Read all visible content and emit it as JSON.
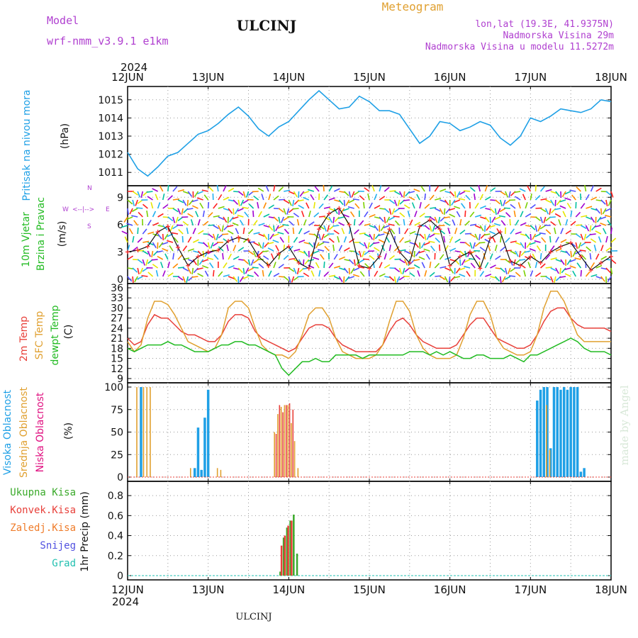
{
  "header": {
    "model_label": "Model",
    "model_name": "wrf-nmm_v3.9.1  e1km",
    "station": "ULCINJ",
    "meteogram": "Meteogram",
    "coords": "lon,lat (19.3E, 41.9375N)",
    "elevation": "Nadmorska Visina 29m",
    "model_elevation": "Nadmorska Visina u modelu 11.5272m",
    "year_top": "2024",
    "year_bottom": "2024",
    "footer_station": "ULCINJ",
    "watermark": "made by Angel"
  },
  "colors": {
    "pressure": "#1fa0e6",
    "t2m": "#e8403a",
    "sfc": "#e0a030",
    "dewpt": "#22bb22",
    "high": "#1fa0e6",
    "mid": "#e0a030",
    "low": "#e8403a",
    "total": "#3aaa2a",
    "conv": "#e8403a",
    "frz": "#ef7c2a",
    "snow": "#5050e0",
    "grad": "#22c0b0",
    "purple": "#b040d0"
  },
  "panel_labels": {
    "pressure": [
      "Pritisak na nivou mora"
    ],
    "pressure_unit": "(hPa)",
    "wind": [
      "10m Vjetar",
      "Brzina i Pravac"
    ],
    "wind_unit": "(m/s)",
    "compass_w": "W",
    "compass_e": "E",
    "compass_n": "N",
    "compass_s": "S",
    "temp": [
      "2m Temp",
      "SFC Temp",
      "dewpt Temp"
    ],
    "temp_unit": "(C)",
    "cloud": [
      "Visoka Oblacnost",
      "Srednja Oblacnost",
      "Niska Oblacnost"
    ],
    "cloud_unit": "(%)",
    "precip_unit": "1hr Precip (mm)",
    "precip_legend": [
      "Ukupna Kisa",
      "Konvek.Kisa",
      "Zaledj.Kisa",
      "Snijeg",
      "Grad"
    ]
  },
  "chart_data": [
    {
      "type": "line",
      "name": "pressure",
      "x_labels": [
        "12JUN",
        "13JUN",
        "14JUN",
        "15JUN",
        "16JUN",
        "17JUN",
        "18JUN"
      ],
      "xlim": [
        0,
        144
      ],
      "ylim": [
        1010.5,
        1015.5
      ],
      "yticks": [
        1011,
        1012,
        1013,
        1014,
        1015
      ],
      "grid": true,
      "x": [
        0,
        3,
        6,
        9,
        12,
        15,
        18,
        21,
        24,
        27,
        30,
        33,
        36,
        39,
        42,
        45,
        48,
        51,
        54,
        57,
        60,
        63,
        66,
        69,
        72,
        75,
        78,
        81,
        84,
        87,
        90,
        93,
        96,
        99,
        102,
        105,
        108,
        111,
        114,
        117,
        120,
        123,
        126,
        129,
        132,
        135,
        138,
        141,
        144
      ],
      "values": [
        1012.1,
        1011.2,
        1010.8,
        1011.3,
        1011.9,
        1012.1,
        1012.6,
        1013.1,
        1013.3,
        1013.7,
        1014.2,
        1014.6,
        1014.1,
        1013.4,
        1013.0,
        1013.5,
        1013.8,
        1014.4,
        1015.0,
        1015.5,
        1015.0,
        1014.5,
        1014.6,
        1015.2,
        1014.9,
        1014.4,
        1014.4,
        1014.2,
        1013.4,
        1012.6,
        1013.0,
        1013.8,
        1013.7,
        1013.3,
        1013.5,
        1013.8,
        1013.6,
        1012.9,
        1012.5,
        1013.0,
        1014.0,
        1013.8,
        1014.1,
        1014.5,
        1014.4,
        1014.3,
        1014.5,
        1015.0,
        1014.9
      ]
    },
    {
      "type": "line",
      "name": "wind",
      "xlim": [
        0,
        144
      ],
      "ylim": [
        0,
        9.8
      ],
      "yticks": [
        0,
        3,
        6,
        9
      ],
      "grid": true,
      "x": [
        0,
        3,
        6,
        9,
        12,
        15,
        18,
        21,
        24,
        27,
        30,
        33,
        36,
        39,
        42,
        45,
        48,
        51,
        54,
        57,
        60,
        63,
        66,
        69,
        72,
        75,
        78,
        81,
        84,
        87,
        90,
        93,
        96,
        99,
        102,
        105,
        108,
        111,
        114,
        117,
        120,
        123,
        126,
        129,
        132,
        135,
        138,
        141,
        144
      ],
      "values": [
        3.0,
        3.2,
        3.6,
        5.2,
        5.8,
        3.5,
        1.5,
        2.5,
        3.0,
        3.2,
        4.2,
        4.6,
        4.3,
        2.5,
        1.5,
        2.8,
        3.6,
        1.8,
        1.2,
        5.5,
        7.2,
        7.8,
        6.0,
        1.5,
        1.2,
        2.5,
        5.5,
        3.0,
        1.8,
        5.8,
        6.5,
        5.5,
        1.5,
        2.5,
        3.0,
        1.2,
        4.5,
        5.2,
        2.0,
        1.5,
        2.5,
        1.8,
        3.0,
        3.6,
        4.0,
        2.5,
        1.0,
        1.8,
        2.5
      ],
      "series_colors": [
        "#ff2020",
        "#ff8c00",
        "#e6e600",
        "#7cd000",
        "#00c0a0",
        "#20b0f0",
        "#5050ff",
        "#a000d0"
      ]
    },
    {
      "type": "line",
      "name": "temperature",
      "xlim": [
        0,
        144
      ],
      "ylim": [
        9,
        36
      ],
      "yticks": [
        9,
        12,
        15,
        18,
        21,
        24,
        27,
        30,
        33,
        36
      ],
      "grid": true,
      "x": [
        0,
        2,
        4,
        6,
        8,
        10,
        12,
        14,
        16,
        18,
        20,
        22,
        24,
        26,
        28,
        30,
        32,
        34,
        36,
        38,
        40,
        42,
        44,
        46,
        48,
        50,
        52,
        54,
        56,
        58,
        60,
        62,
        64,
        66,
        68,
        70,
        72,
        74,
        76,
        78,
        80,
        82,
        84,
        86,
        88,
        90,
        92,
        94,
        96,
        98,
        100,
        102,
        104,
        106,
        108,
        110,
        112,
        114,
        116,
        118,
        120,
        122,
        124,
        126,
        128,
        130,
        132,
        134,
        136,
        138,
        140,
        142,
        144
      ],
      "series": [
        {
          "name": "2m Temp",
          "values": [
            21,
            19,
            20,
            25,
            28,
            27,
            27,
            25,
            23,
            22,
            22,
            21,
            20,
            20,
            22,
            26,
            28,
            28,
            27,
            23,
            21,
            20,
            19,
            18,
            17,
            18,
            21,
            24,
            25,
            25,
            24,
            21,
            19,
            18,
            17,
            17,
            17,
            17,
            19,
            23,
            26,
            27,
            25,
            22,
            20,
            19,
            18,
            18,
            18,
            19,
            22,
            25,
            27,
            27,
            24,
            21,
            20,
            19,
            18,
            18,
            19,
            22,
            26,
            29,
            30,
            30,
            27,
            25,
            24,
            24,
            24,
            24,
            23
          ]
        },
        {
          "name": "SFC Temp",
          "values": [
            20,
            17,
            19,
            27,
            32,
            32,
            31,
            28,
            24,
            20,
            19,
            18,
            17,
            18,
            22,
            30,
            32,
            32,
            30,
            24,
            19,
            17,
            16,
            16,
            15,
            17,
            22,
            28,
            30,
            30,
            27,
            21,
            17,
            16,
            15,
            15,
            15,
            16,
            19,
            26,
            32,
            32,
            29,
            22,
            18,
            16,
            15,
            15,
            15,
            16,
            21,
            28,
            32,
            32,
            28,
            21,
            18,
            17,
            16,
            16,
            17,
            22,
            30,
            35,
            35,
            32,
            27,
            22,
            20,
            20,
            20,
            20,
            20
          ]
        },
        {
          "name": "dewpt Temp",
          "values": [
            18,
            17,
            18,
            19,
            19,
            19,
            20,
            19,
            19,
            18,
            17,
            17,
            17,
            18,
            19,
            19,
            20,
            20,
            19,
            19,
            18,
            17,
            16,
            12,
            10,
            12,
            14,
            14,
            15,
            14,
            14,
            16,
            16,
            16,
            16,
            15,
            16,
            16,
            16,
            16,
            16,
            16,
            17,
            17,
            17,
            16,
            17,
            16,
            17,
            16,
            15,
            15,
            16,
            16,
            15,
            15,
            15,
            16,
            15,
            14,
            16,
            16,
            17,
            18,
            19,
            20,
            21,
            20,
            18,
            17,
            17,
            17,
            16
          ]
        }
      ]
    },
    {
      "type": "bar",
      "name": "clouds",
      "xlim": [
        0,
        144
      ],
      "ylim": [
        0,
        100
      ],
      "yticks": [
        0,
        25,
        50,
        75,
        100
      ],
      "grid": true,
      "series": [
        {
          "name": "Visoka Oblacnost",
          "points": [
            [
              4,
              100
            ],
            [
              20,
              10
            ],
            [
              21,
              55
            ],
            [
              22,
              8
            ],
            [
              23,
              66
            ],
            [
              24,
              97
            ],
            [
              122,
              85
            ],
            [
              123,
              97
            ],
            [
              124,
              100
            ],
            [
              125,
              100
            ],
            [
              126,
              32
            ],
            [
              127,
              100
            ],
            [
              128,
              100
            ],
            [
              129,
              97
            ],
            [
              130,
              100
            ],
            [
              131,
              97
            ],
            [
              132,
              100
            ],
            [
              133,
              100
            ],
            [
              134,
              100
            ],
            [
              135,
              6
            ],
            [
              136,
              10
            ]
          ]
        },
        {
          "name": "Srednja Oblacnost",
          "points": [
            [
              3,
              100
            ],
            [
              5,
              100
            ],
            [
              6,
              100
            ],
            [
              7,
              100
            ],
            [
              19,
              10
            ],
            [
              27,
              10
            ],
            [
              28,
              8
            ],
            [
              44,
              50
            ],
            [
              45,
              70
            ],
            [
              46,
              78
            ],
            [
              47,
              80
            ],
            [
              48,
              80
            ],
            [
              49,
              60
            ],
            [
              50,
              40
            ],
            [
              51,
              10
            ],
            [
              125,
              80
            ],
            [
              126,
              30
            ]
          ]
        },
        {
          "name": "Niska Oblacnost",
          "points": [
            [
              44,
              48
            ],
            [
              45,
              80
            ],
            [
              46,
              72
            ],
            [
              47,
              80
            ],
            [
              48,
              82
            ],
            [
              49,
              75
            ]
          ]
        }
      ]
    },
    {
      "type": "bar",
      "name": "precip",
      "xlim": [
        0,
        144
      ],
      "ylim": [
        0,
        0.9
      ],
      "yticks": [
        0,
        0.2,
        0.4,
        0.6,
        0.8
      ],
      "grid": true,
      "series": [
        {
          "name": "Ukupna Kisa",
          "points": [
            [
              45,
              0.04
            ],
            [
              46,
              0.38
            ],
            [
              47,
              0.48
            ],
            [
              48,
              0.55
            ],
            [
              49,
              0.61
            ],
            [
              50,
              0.22
            ]
          ]
        },
        {
          "name": "Konvek.Kisa",
          "points": [
            [
              46,
              0.3
            ],
            [
              47,
              0.4
            ],
            [
              48,
              0.5
            ],
            [
              49,
              0.55
            ]
          ]
        }
      ]
    }
  ]
}
